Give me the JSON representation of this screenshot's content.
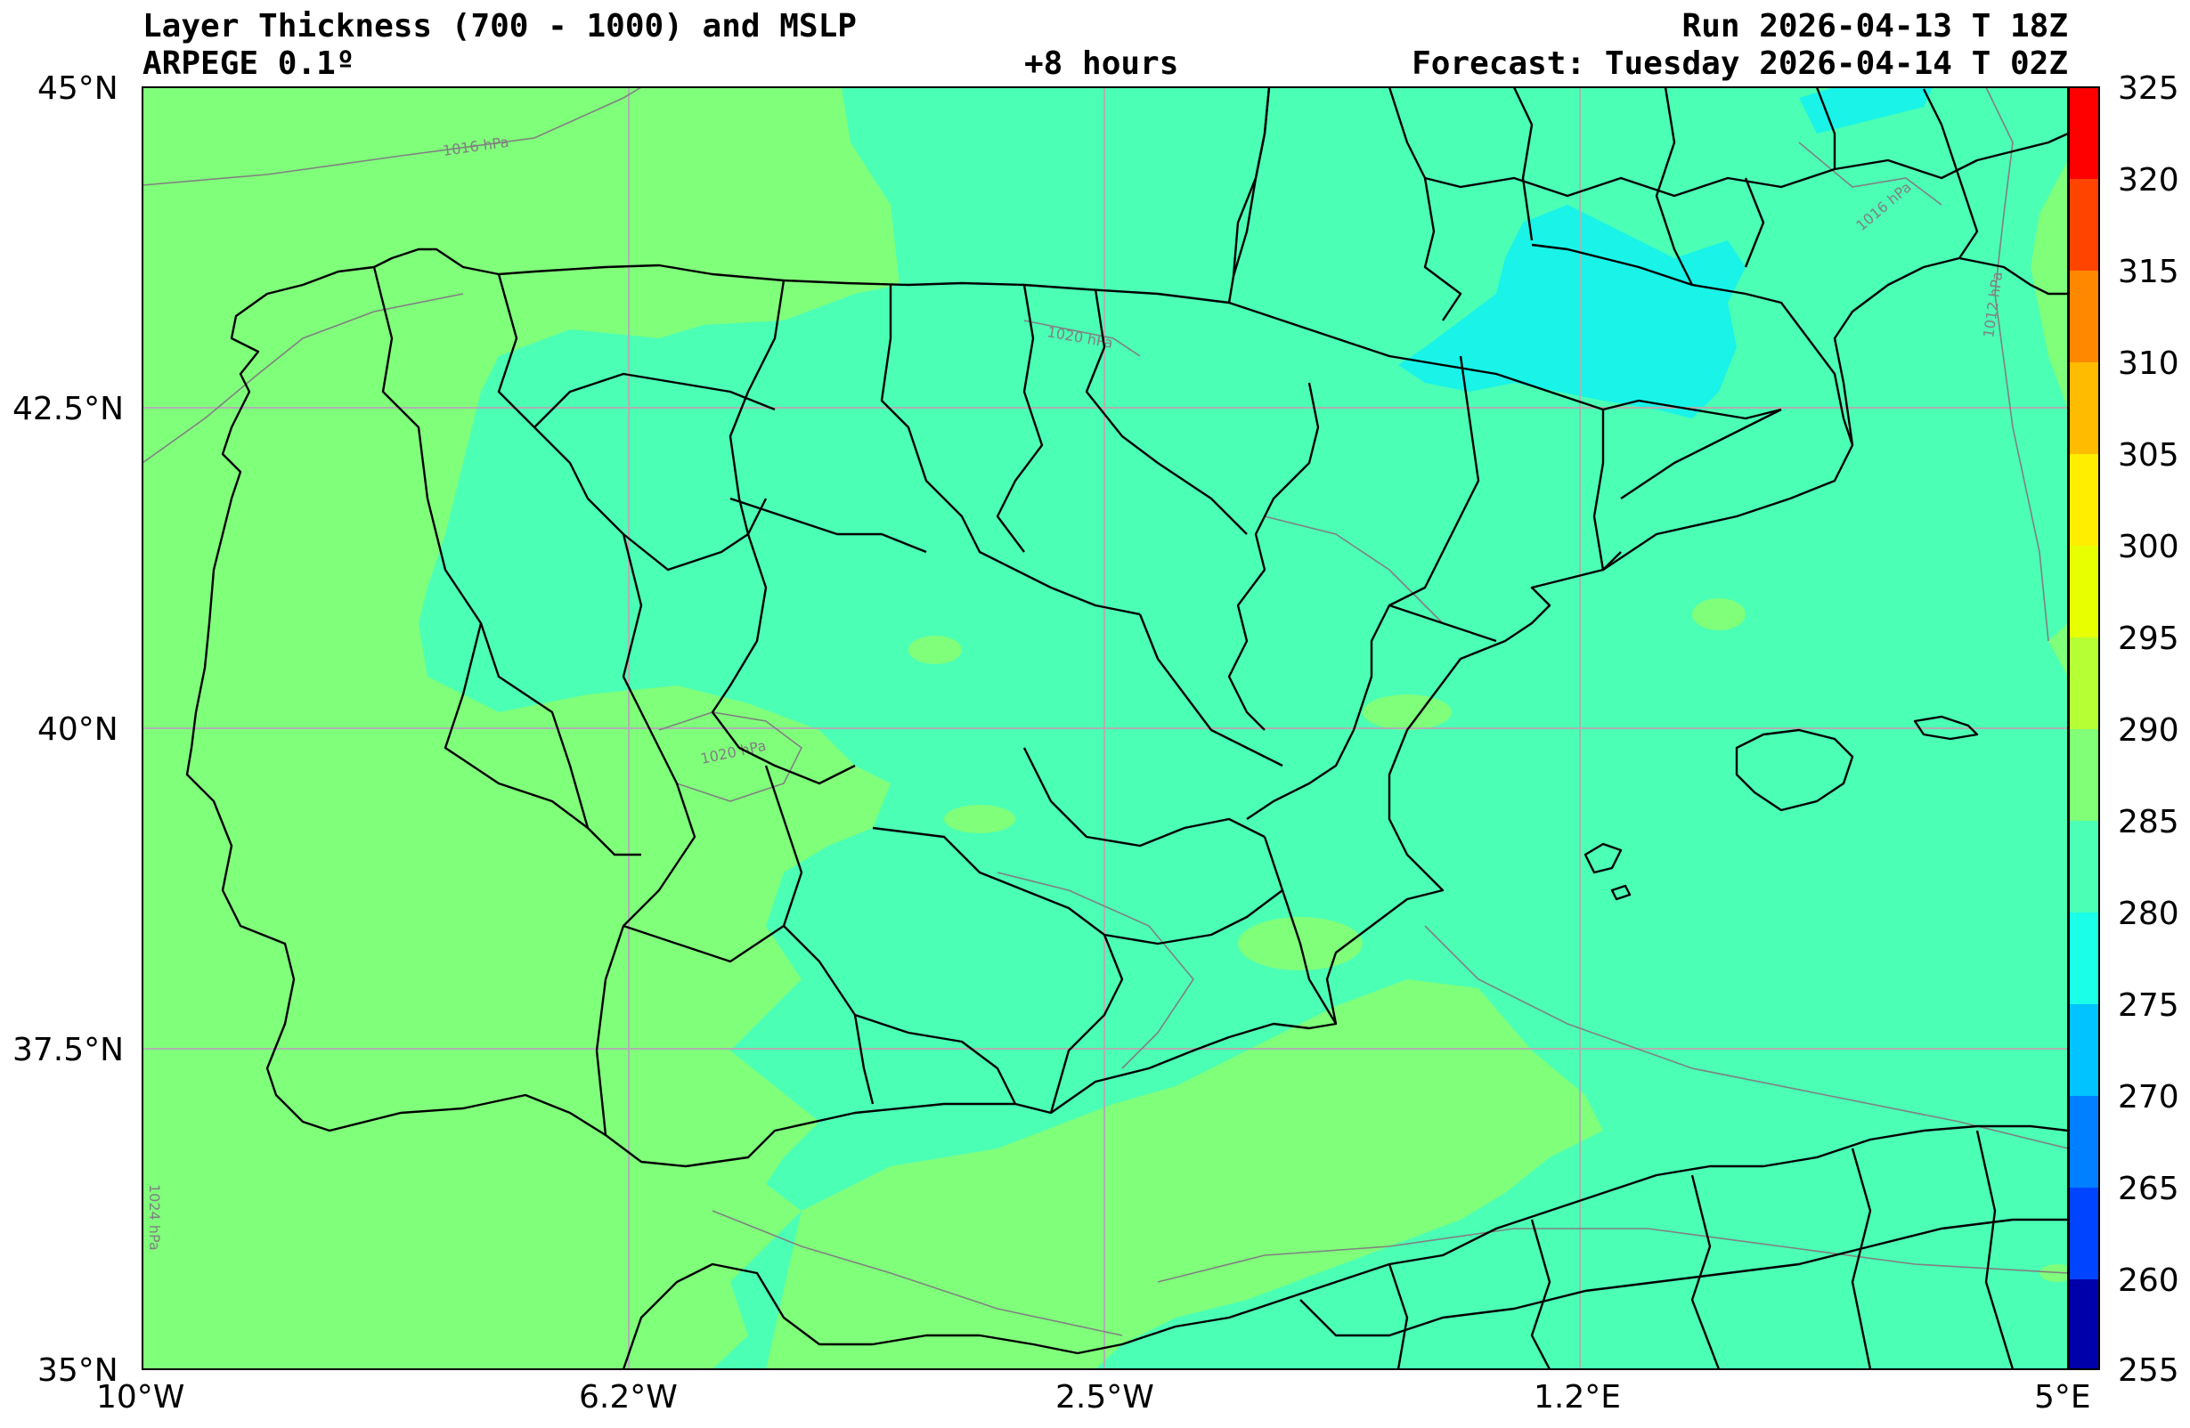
{
  "header": {
    "title": "Layer Thickness (700 - 1000) and MSLP",
    "model": "ARPEGE 0.1º",
    "lead": "+8 hours",
    "run": "Run 2026-04-13 T 18Z",
    "forecast": "Forecast: Tuesday 2026-04-14 T 02Z"
  },
  "axes": {
    "lon_labels": [
      "10°W",
      "6.2°W",
      "2.5°W",
      "1.2°E",
      "5°E"
    ],
    "lat_labels": [
      "45°N",
      "42.5°N",
      "40°N",
      "37.5°N",
      "35°N"
    ]
  },
  "colorbar": {
    "ticks": [
      "325",
      "320",
      "315",
      "310",
      "305",
      "300",
      "295",
      "290",
      "285",
      "280",
      "275",
      "270",
      "265",
      "260",
      "255"
    ],
    "colors": [
      "#ff0000",
      "#ff4400",
      "#ff8800",
      "#ffbb00",
      "#ffee00",
      "#e8ff00",
      "#b5ff35",
      "#80ff77",
      "#4bffb5",
      "#19ffe8",
      "#00c3ff",
      "#0080ff",
      "#0044ff",
      "#0000ee",
      "#0000aa"
    ]
  },
  "isobars": [
    "1016 hPa",
    "1020 hPa",
    "1020 hPa",
    "1024 hPa",
    "1012 hPa",
    "1016 hPa"
  ],
  "map": {
    "colors": {
      "c290_295": "#80ff7b",
      "c285_290": "#4bffb5",
      "c280_285": "#19f3e8",
      "gridline": "#b0b0b0",
      "isobar": "#808080"
    }
  }
}
